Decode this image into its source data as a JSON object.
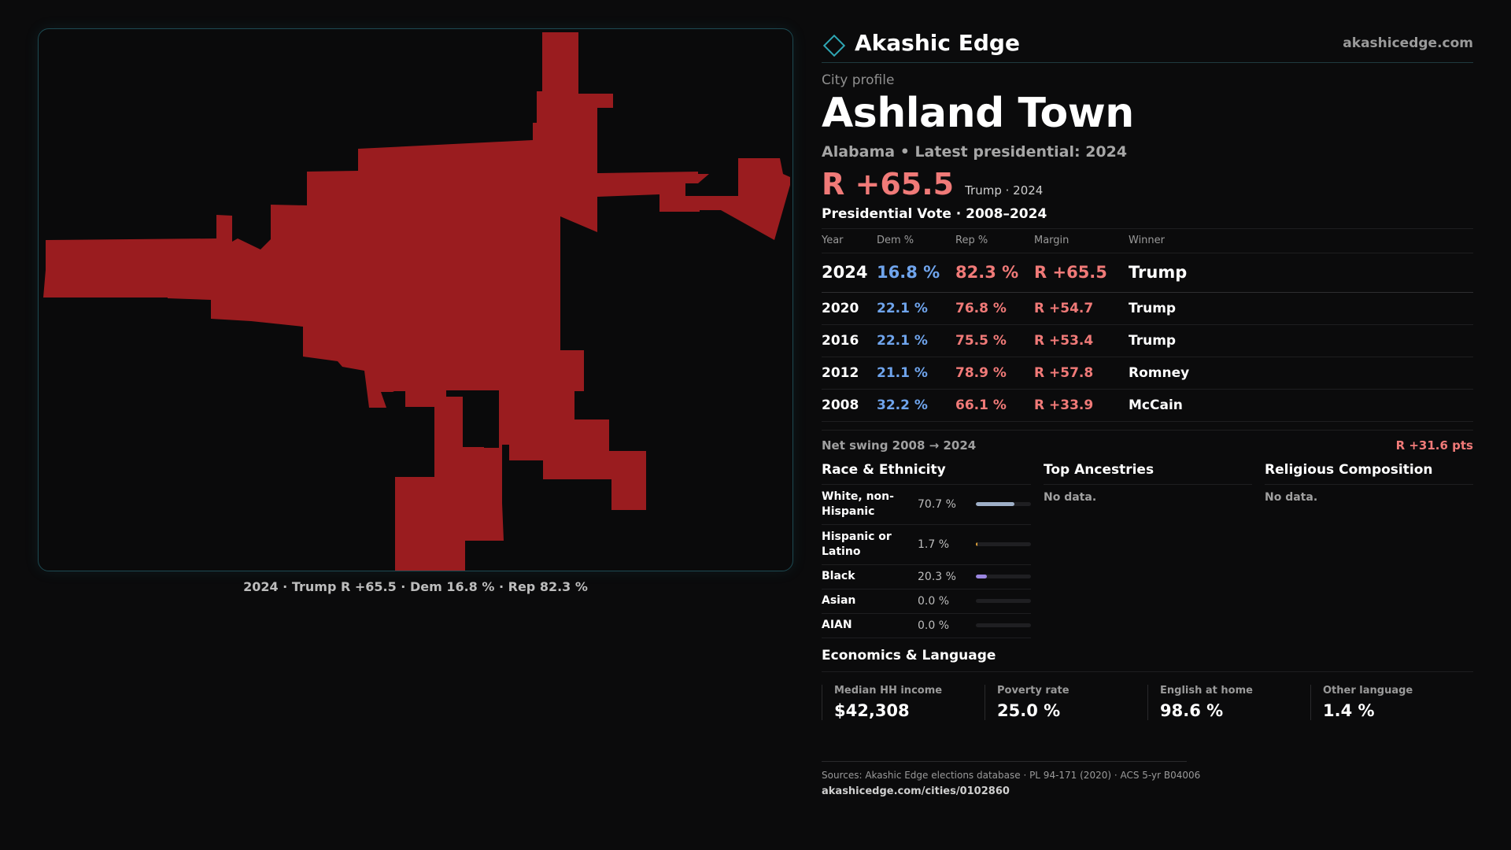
{
  "brand": {
    "name": "Akashic Edge",
    "url": "akashicedge.com",
    "logo_icon": "diamond-outline-icon"
  },
  "map": {
    "fill_color": "#9a1c1f",
    "caption": "2024 · Trump R +65.5 · Dem 16.8 % · Rep 82.3 %"
  },
  "profile": {
    "eyebrow": "City profile",
    "title": "Ashland Town",
    "subtitle": "Alabama • Latest presidential: 2024",
    "headline_margin": "R +65.5",
    "headline_note": "Trump · 2024"
  },
  "vote_section": {
    "title": "Presidential Vote · 2008–2024",
    "columns": [
      "Year",
      "Dem %",
      "Rep %",
      "Margin",
      "Winner"
    ],
    "rows": [
      {
        "year": "2024",
        "dem": "16.8 %",
        "rep": "82.3 %",
        "margin": "R +65.5",
        "winner": "Trump"
      },
      {
        "year": "2020",
        "dem": "22.1 %",
        "rep": "76.8 %",
        "margin": "R +54.7",
        "winner": "Trump"
      },
      {
        "year": "2016",
        "dem": "22.1 %",
        "rep": "75.5 %",
        "margin": "R +53.4",
        "winner": "Trump"
      },
      {
        "year": "2012",
        "dem": "21.1 %",
        "rep": "78.9 %",
        "margin": "R +57.8",
        "winner": "Romney"
      },
      {
        "year": "2008",
        "dem": "32.2 %",
        "rep": "66.1 %",
        "margin": "R +33.9",
        "winner": "McCain"
      }
    ],
    "swing_label": "Net swing 2008 → 2024",
    "swing_value": "R +31.6 pts"
  },
  "race": {
    "title": "Race & Ethnicity",
    "rows": [
      {
        "label": "White, non-Hispanic",
        "value": "70.7 %",
        "fraction": 0.707,
        "color": "#9fb0c8"
      },
      {
        "label": "Hispanic or Latino",
        "value": "1.7 %",
        "fraction": 0.017,
        "color": "#e0a23a"
      },
      {
        "label": "Black",
        "value": "20.3 %",
        "fraction": 0.203,
        "color": "#9b86e0"
      },
      {
        "label": "Asian",
        "value": "0.0 %",
        "fraction": 0.0,
        "color": "#5fb7c2"
      },
      {
        "label": "AIAN",
        "value": "0.0 %",
        "fraction": 0.0,
        "color": "#c97a9a"
      }
    ]
  },
  "ancestries": {
    "title": "Top Ancestries",
    "empty": "No data."
  },
  "religion": {
    "title": "Religious Composition",
    "empty": "No data."
  },
  "economics": {
    "title": "Economics & Language",
    "stats": [
      {
        "label": "Median HH income",
        "value": "$42,308"
      },
      {
        "label": "Poverty rate",
        "value": "25.0 %"
      },
      {
        "label": "English at home",
        "value": "98.6 %"
      },
      {
        "label": "Other language",
        "value": "1.4 %"
      }
    ]
  },
  "footer": {
    "sources": "Sources: Akashic Edge elections database · PL 94-171 (2020) · ACS 5-yr B04006",
    "url": "akashicedge.com/cities/0102860"
  }
}
